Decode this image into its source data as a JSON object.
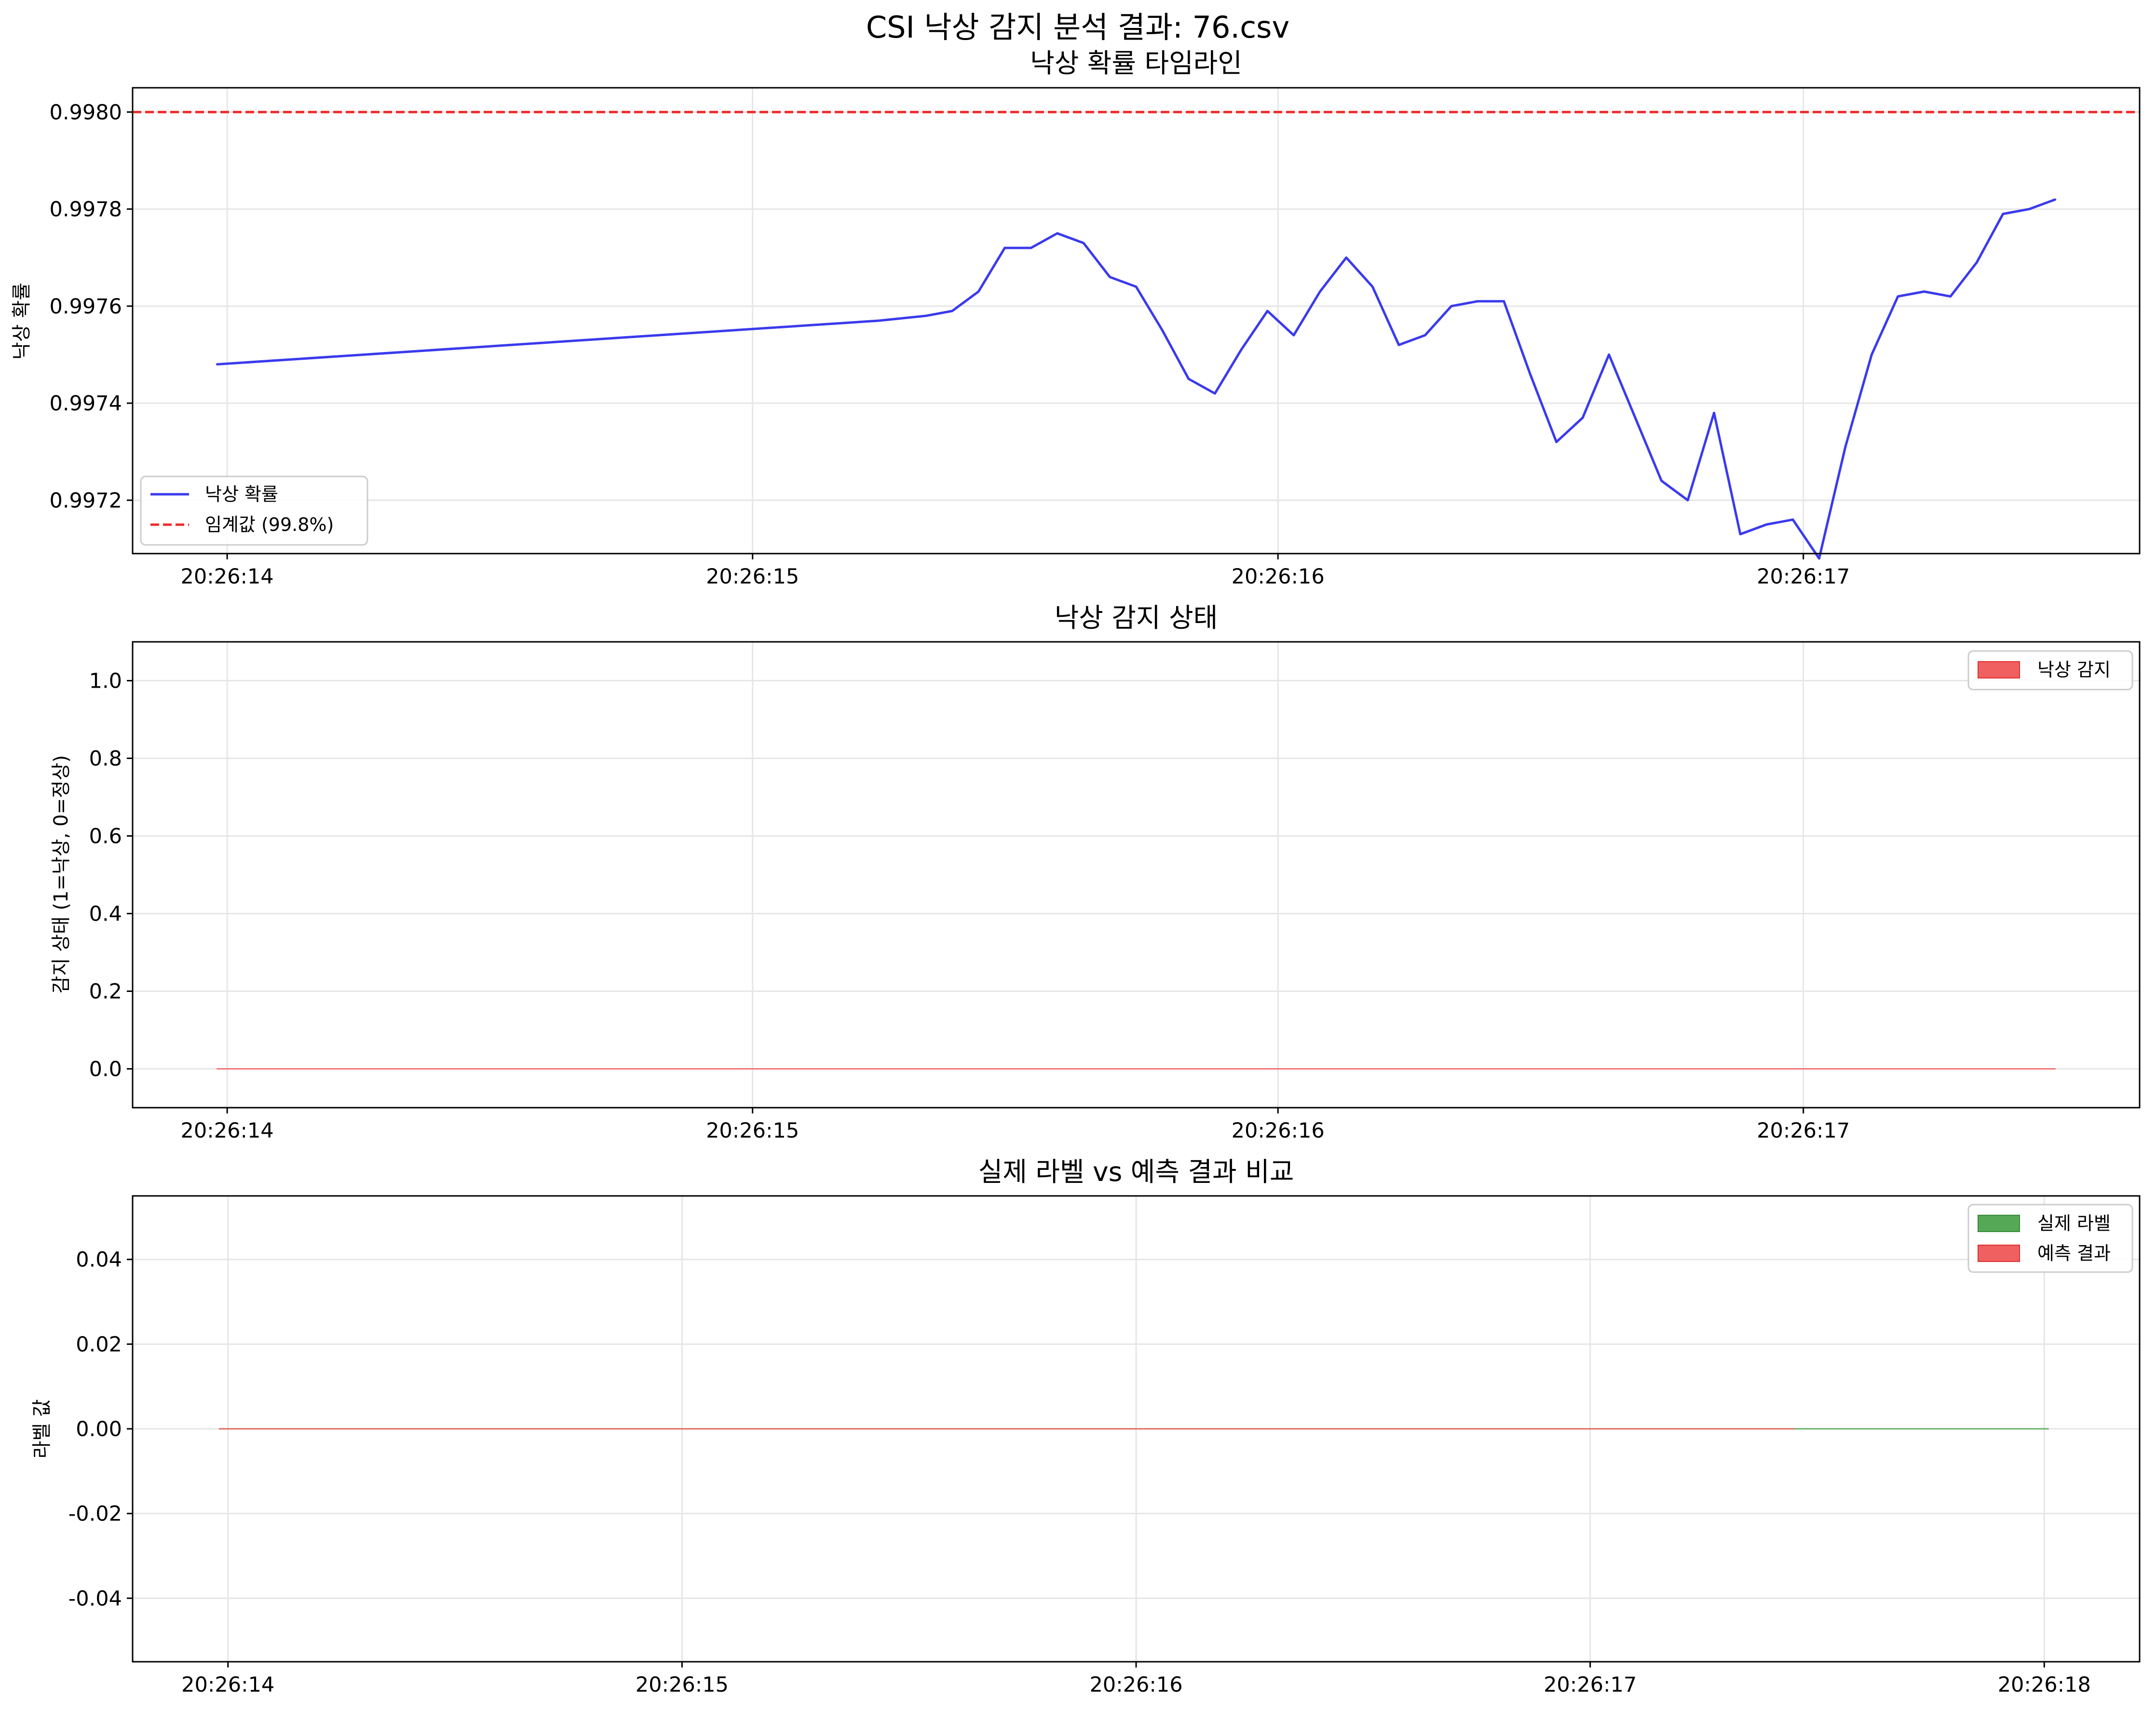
{
  "figure": {
    "suptitle": "CSI 낙상 감지 분석 결과: 76.csv",
    "colors": {
      "probability": "#3a3aee",
      "threshold": "#ee2b2b",
      "fall": "#f06060",
      "actual": "#55a855",
      "predicted": "#f06060"
    }
  },
  "chart_data": [
    {
      "type": "line",
      "title": "낙상 확률 타임라인",
      "xlabel": "",
      "ylabel": "낙상 확률",
      "x_ticks": [
        "20:26:14",
        "20:26:15",
        "20:26:16",
        "20:26:17"
      ],
      "x_tick_values": [
        14,
        15,
        16,
        17
      ],
      "xlim": [
        13.82,
        17.64
      ],
      "y_ticks": [
        "0.9972",
        "0.9974",
        "0.9976",
        "0.9978",
        "0.9980"
      ],
      "y_tick_values": [
        0.9972,
        0.9974,
        0.9976,
        0.9978,
        0.998
      ],
      "ylim": [
        0.99709,
        0.99805
      ],
      "grid": true,
      "legend_position": "lower-left",
      "series": [
        {
          "name": "낙상 확률",
          "color": "#3a3aee",
          "style": "solid",
          "x": [
            13.98,
            15.24,
            15.33,
            15.38,
            15.43,
            15.48,
            15.53,
            15.58,
            15.63,
            15.68,
            15.73,
            15.78,
            15.83,
            15.88,
            15.93,
            15.98,
            16.03,
            16.08,
            16.13,
            16.18,
            16.23,
            16.28,
            16.33,
            16.38,
            16.43,
            16.48,
            16.53,
            16.58,
            16.63,
            16.68,
            16.73,
            16.78,
            16.83,
            16.88,
            16.93,
            16.98,
            17.03,
            17.08,
            17.13,
            17.18,
            17.23,
            17.28,
            17.33,
            17.38,
            17.43,
            17.48
          ],
          "values": [
            0.99748,
            0.99757,
            0.99758,
            0.99759,
            0.99763,
            0.99772,
            0.99772,
            0.99775,
            0.99773,
            0.99766,
            0.99764,
            0.99755,
            0.99745,
            0.99742,
            0.99751,
            0.99759,
            0.99754,
            0.99763,
            0.9977,
            0.99764,
            0.99752,
            0.99754,
            0.9976,
            0.99761,
            0.99761,
            0.99746,
            0.99732,
            0.99737,
            0.9975,
            0.99737,
            0.99724,
            0.9972,
            0.99738,
            0.99713,
            0.99715,
            0.99716,
            0.99708,
            0.99731,
            0.9975,
            0.99762,
            0.99763,
            0.99762,
            0.99769,
            0.99779,
            0.9978,
            0.99782
          ]
        },
        {
          "name": "임계값 (99.8%)",
          "color": "#ee2b2b",
          "style": "dashed",
          "y_constant": 0.998
        }
      ]
    },
    {
      "type": "area",
      "title": "낙상 감지 상태",
      "xlabel": "",
      "ylabel": "감지 상태 (1=낙상, 0=정상)",
      "x_ticks": [
        "20:26:14",
        "20:26:15",
        "20:26:16",
        "20:26:17"
      ],
      "x_tick_values": [
        14,
        15,
        16,
        17
      ],
      "xlim": [
        13.82,
        17.64
      ],
      "y_ticks": [
        "0.0",
        "0.2",
        "0.4",
        "0.6",
        "0.8",
        "1.0"
      ],
      "y_tick_values": [
        0,
        0.2,
        0.4,
        0.6,
        0.8,
        1.0
      ],
      "ylim": [
        -0.1,
        1.1
      ],
      "grid": true,
      "legend_position": "upper-right",
      "series": [
        {
          "name": "낙상 감지",
          "color": "#f06060",
          "x": [
            13.98,
            17.48
          ],
          "values": [
            0,
            0
          ]
        }
      ]
    },
    {
      "type": "area",
      "title": "실제 라벨 vs 예측 결과 비교",
      "xlabel": "",
      "ylabel": "라벨 값",
      "x_ticks": [
        "20:26:14",
        "20:26:15",
        "20:26:16",
        "20:26:17",
        "20:26:18"
      ],
      "x_tick_values": [
        14,
        15,
        16,
        17,
        18
      ],
      "xlim": [
        13.79,
        18.21
      ],
      "y_ticks": [
        "-0.04",
        "-0.02",
        "0.00",
        "0.02",
        "0.04"
      ],
      "y_tick_values": [
        -0.04,
        -0.02,
        0,
        0.02,
        0.04
      ],
      "ylim": [
        -0.055,
        0.055
      ],
      "grid": true,
      "legend_position": "upper-right",
      "series": [
        {
          "name": "실제 라벨",
          "color": "#55a855",
          "x": [
            13.98,
            18.01
          ],
          "values": [
            0,
            0
          ]
        },
        {
          "name": "예측 결과",
          "color": "#f06060",
          "x": [
            13.98,
            17.45
          ],
          "values": [
            0,
            0
          ]
        }
      ]
    }
  ]
}
